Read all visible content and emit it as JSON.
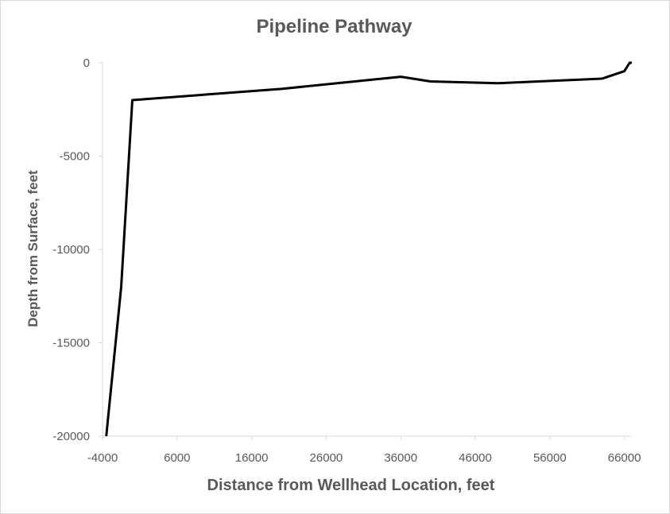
{
  "chart_data": {
    "type": "line",
    "title": "Pipeline Pathway",
    "xlabel": "Distance from Wellhead Location,  feet",
    "ylabel": "Depth from Surface, feet",
    "xlim": [
      -4000,
      67000
    ],
    "ylim": [
      -20000,
      0
    ],
    "xticks": [
      -4000,
      6000,
      16000,
      26000,
      36000,
      46000,
      56000,
      66000
    ],
    "yticks": [
      0,
      -5000,
      -10000,
      -15000,
      -20000
    ],
    "grid": false,
    "legend": "none",
    "series": [
      {
        "color": "#000000",
        "points": [
          [
            -3500,
            -20000
          ],
          [
            -1500,
            -12000
          ],
          [
            0,
            -2000
          ],
          [
            20000,
            -1400
          ],
          [
            36000,
            -750
          ],
          [
            40000,
            -1000
          ],
          [
            49000,
            -1100
          ],
          [
            63000,
            -850
          ],
          [
            66000,
            -450
          ],
          [
            66700,
            0
          ],
          [
            67000,
            0
          ]
        ]
      }
    ]
  }
}
